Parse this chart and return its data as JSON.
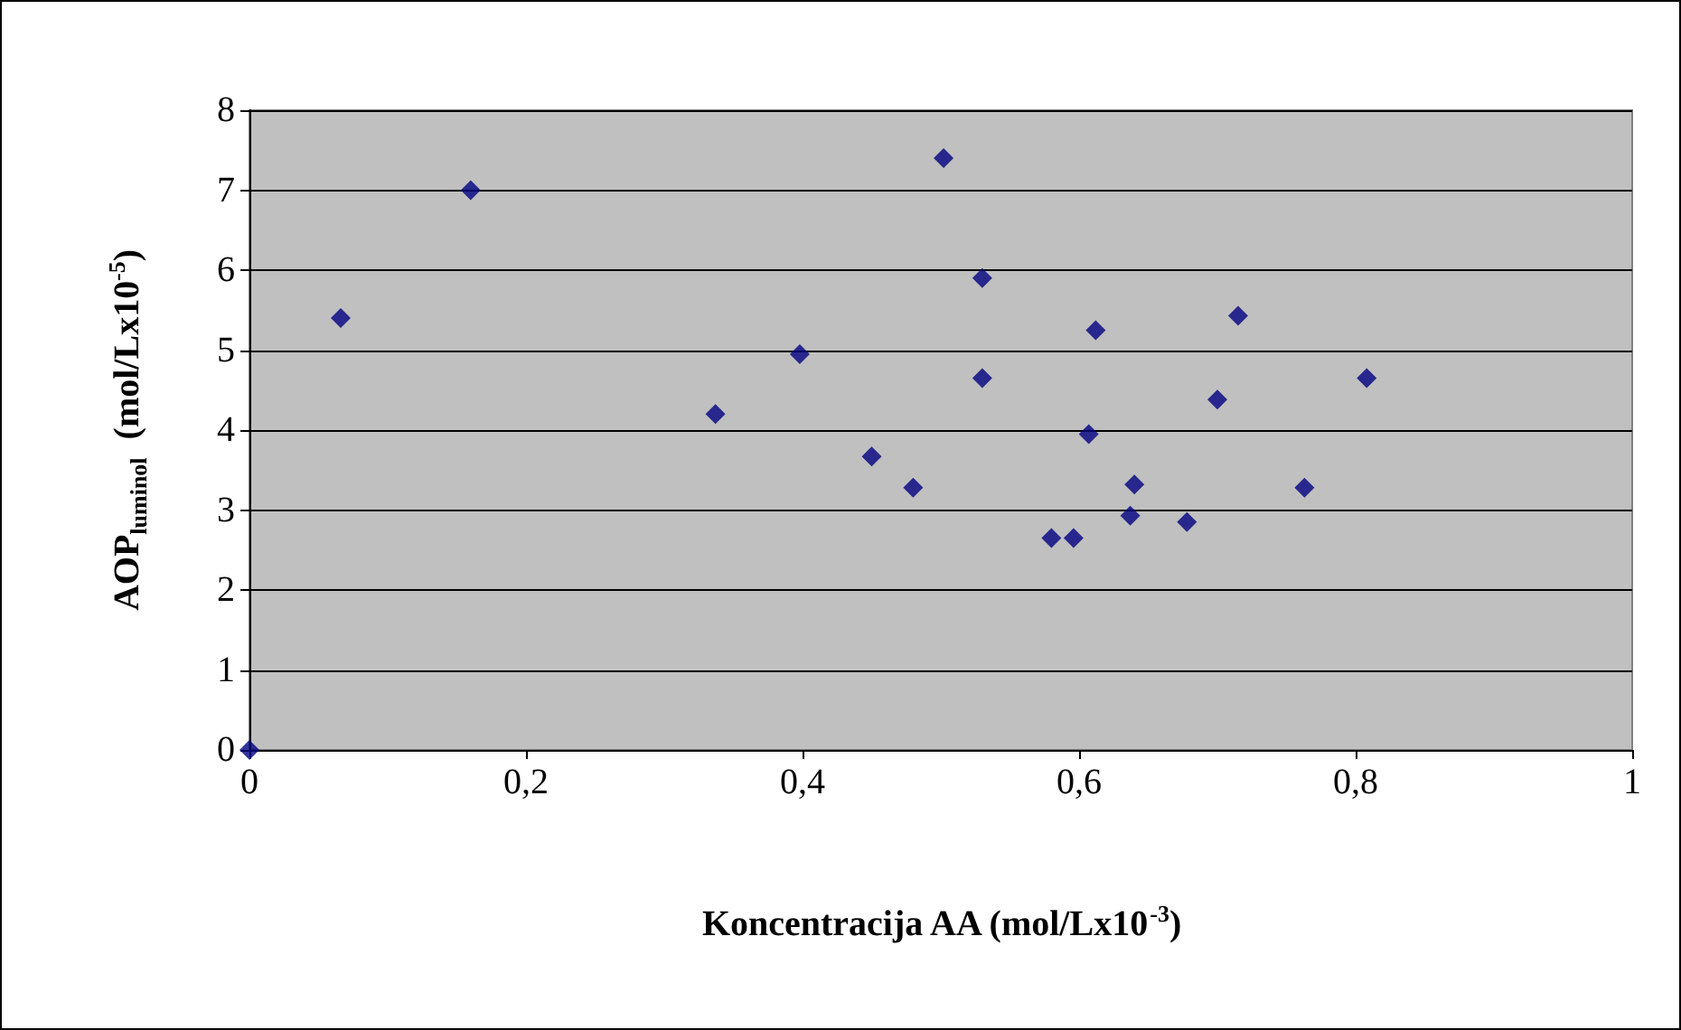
{
  "chart_data": {
    "type": "scatter",
    "xlabel": "Koncentracija AA (mol/Lx10$^{-3}$)",
    "ylabel": "AOP$_{luminol}$  (mol/Lx10$^{-5}$)",
    "x": [
      0,
      0.066,
      0.16,
      0.337,
      0.398,
      0.45,
      0.48,
      0.502,
      0.53,
      0.53,
      0.58,
      0.596,
      0.607,
      0.612,
      0.637,
      0.64,
      0.678,
      0.7,
      0.715,
      0.763,
      0.808
    ],
    "values": [
      0,
      5.4,
      7.0,
      4.2,
      4.95,
      3.67,
      3.28,
      7.4,
      5.9,
      4.65,
      2.65,
      2.65,
      3.95,
      5.25,
      2.93,
      3.32,
      2.85,
      4.38,
      5.43,
      3.28,
      4.65
    ],
    "color": "#000080",
    "marker": "diamond",
    "grid": "y",
    "xlim": [
      0,
      1
    ],
    "xticks": [
      0,
      {
        "value": 0.2,
        "label": "0,2"
      },
      {
        "value": 0.4,
        "label": "0,4"
      },
      {
        "value": 0.6,
        "label": "0,6"
      },
      {
        "value": 0.8,
        "label": "0,8"
      },
      1
    ],
    "ylim": [
      0,
      8
    ],
    "yticks": [
      0,
      1,
      2,
      3,
      4,
      5,
      6,
      7,
      8
    ]
  }
}
